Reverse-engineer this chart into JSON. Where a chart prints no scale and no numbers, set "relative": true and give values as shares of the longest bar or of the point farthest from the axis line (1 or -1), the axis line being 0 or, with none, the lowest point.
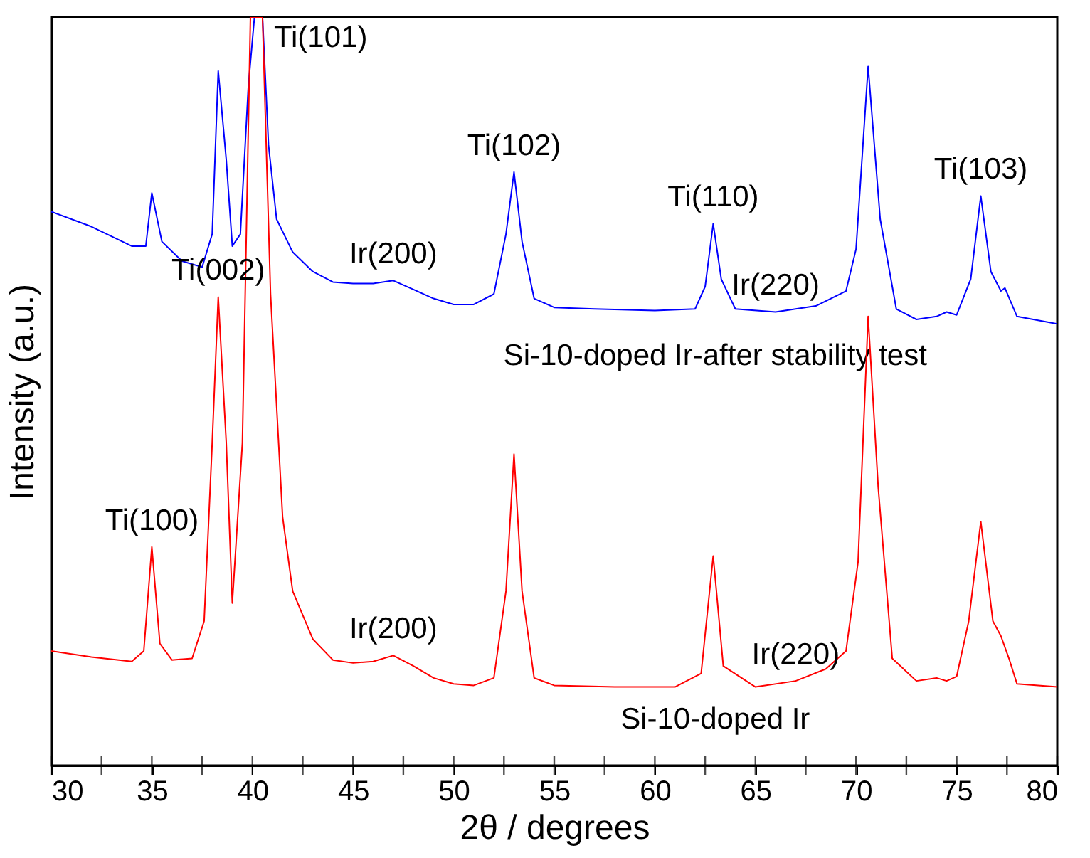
{
  "chart_data": {
    "type": "line",
    "relative": true,
    "xlabel": "2θ / degrees",
    "ylabel": "Intensity (a.u.)",
    "xlim": [
      30,
      80
    ],
    "xticks": [
      30,
      {
        "value": 32.5,
        "label": null
      },
      35,
      {
        "value": 37.5,
        "label": null
      },
      40,
      {
        "value": 42.5,
        "label": null
      },
      45,
      {
        "value": 47.5,
        "label": null
      },
      50,
      {
        "value": 52.5,
        "label": null
      },
      55,
      {
        "value": 57.5,
        "label": null
      },
      60,
      {
        "value": 62.5,
        "label": null
      },
      65,
      {
        "value": 67.5,
        "label": null
      },
      70,
      {
        "value": 72.5,
        "label": null
      },
      75,
      {
        "value": 77.5,
        "label": null
      },
      80
    ],
    "grid": false,
    "tick_labels": "x",
    "series": [
      {
        "name": "Si-10-doped Ir-after stability test",
        "color": "#0000ff",
        "x": [
          30,
          32,
          34,
          34.7,
          35.0,
          35.5,
          36.5,
          37.5,
          38.0,
          38.3,
          38.7,
          39.0,
          39.4,
          39.8,
          40.1,
          40.5,
          40.8,
          41.2,
          42,
          43,
          44,
          45,
          46,
          47,
          48,
          49,
          50,
          51,
          52,
          52.6,
          53.0,
          53.4,
          54,
          55,
          57,
          60,
          62,
          62.5,
          62.9,
          63.3,
          64,
          66,
          68,
          69.5,
          70.0,
          70.6,
          71.2,
          72,
          73,
          74,
          74.5,
          75,
          75.7,
          76.2,
          76.7,
          77.2,
          77.4,
          78,
          80
        ],
        "values": [
          0.74,
          0.72,
          0.694,
          0.694,
          0.765,
          0.7,
          0.674,
          0.666,
          0.71,
          0.928,
          0.809,
          0.694,
          0.71,
          0.909,
          1,
          1,
          0.829,
          0.73,
          0.686,
          0.66,
          0.646,
          0.644,
          0.644,
          0.648,
          0.636,
          0.624,
          0.616,
          0.616,
          0.63,
          0.71,
          0.793,
          0.7,
          0.624,
          0.612,
          0.61,
          0.608,
          0.61,
          0.64,
          0.724,
          0.65,
          0.61,
          0.606,
          0.614,
          0.634,
          0.69,
          0.934,
          0.73,
          0.61,
          0.596,
          0.6,
          0.606,
          0.602,
          0.65,
          0.761,
          0.66,
          0.634,
          0.638,
          0.6,
          0.59
        ]
      },
      {
        "name": "Si-10-doped Ir",
        "color": "#ff0000",
        "x": [
          30,
          32,
          34,
          34.6,
          35.0,
          35.4,
          36,
          37,
          37.6,
          38.0,
          38.3,
          38.7,
          39.0,
          39.5,
          39.9,
          40.5,
          40.9,
          41.5,
          42,
          43,
          44,
          45,
          46,
          47,
          48,
          49,
          50,
          51,
          52,
          52.6,
          53.0,
          53.4,
          54,
          55,
          58,
          61,
          62.3,
          62.9,
          63.4,
          65,
          67,
          68.5,
          69.5,
          70.1,
          70.6,
          71.1,
          71.8,
          73,
          74,
          74.5,
          75,
          75.6,
          76.2,
          76.8,
          77.2,
          77.6,
          78,
          80
        ],
        "values": [
          0.153,
          0.145,
          0.139,
          0.153,
          0.292,
          0.163,
          0.141,
          0.143,
          0.193,
          0.431,
          0.626,
          0.431,
          0.217,
          0.431,
          1,
          1,
          0.63,
          0.332,
          0.233,
          0.169,
          0.141,
          0.137,
          0.139,
          0.147,
          0.133,
          0.117,
          0.109,
          0.107,
          0.117,
          0.233,
          0.416,
          0.233,
          0.117,
          0.107,
          0.105,
          0.105,
          0.123,
          0.28,
          0.133,
          0.105,
          0.113,
          0.129,
          0.153,
          0.272,
          0.6,
          0.372,
          0.143,
          0.113,
          0.117,
          0.113,
          0.119,
          0.193,
          0.326,
          0.193,
          0.173,
          0.143,
          0.109,
          0.105
        ]
      }
    ],
    "annotations": [
      {
        "text": "Ti(101)",
        "x": 40.5,
        "y": 1
      },
      {
        "text": "Ti(102)",
        "x": 53.0,
        "y": 0.793
      },
      {
        "text": "Ir(200)",
        "x": 47,
        "y": 0.648
      },
      {
        "text": "Ti(002)",
        "x": 38.3,
        "y": 0.626
      },
      {
        "text": "Ti(110)",
        "x": 62.9,
        "y": 0.724
      },
      {
        "text": "Ir(220)",
        "x": 66,
        "y": 0.606
      },
      {
        "text": "Ti(103)",
        "x": 76.2,
        "y": 0.761
      },
      {
        "text": "Ti(100)",
        "x": 35.0,
        "y": 0.292
      },
      {
        "text": "Ir(200)",
        "x": 47,
        "y": 0.147
      },
      {
        "text": "Ir(220)",
        "x": 67,
        "y": 0.113
      }
    ]
  }
}
